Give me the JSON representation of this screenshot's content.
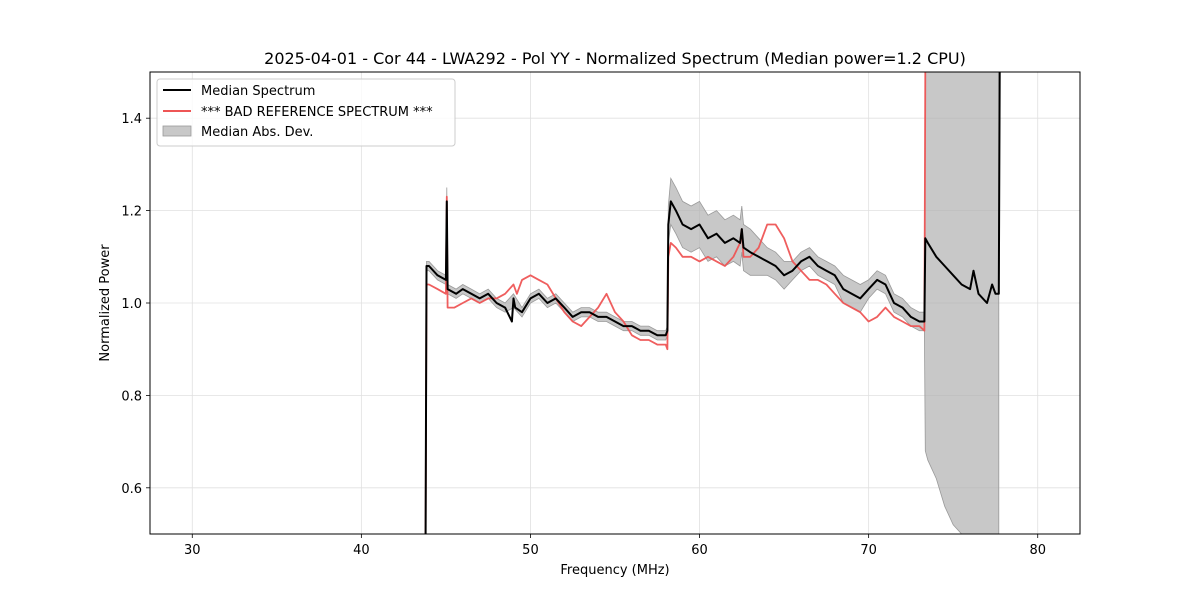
{
  "chart_data": {
    "type": "line",
    "title": "2025-04-01 - Cor 44 - LWA292 - Pol YY - Normalized Spectrum (Median power=1.2 CPU)",
    "xlabel": "Frequency (MHz)",
    "ylabel": "Normalized Power",
    "xlim": [
      27.5,
      82.5
    ],
    "ylim": [
      0.5,
      1.5
    ],
    "xticks": [
      30,
      40,
      50,
      60,
      70,
      80
    ],
    "xtick_labels": [
      "30",
      "40",
      "50",
      "60",
      "70",
      "80"
    ],
    "yticks": [
      0.6,
      0.8,
      1.0,
      1.2,
      1.4
    ],
    "ytick_labels": [
      "0.6",
      "0.8",
      "1.0",
      "1.2",
      "1.4"
    ],
    "grid": true,
    "legend_position": "top-left",
    "legend": [
      {
        "label": "Median Spectrum",
        "kind": "line",
        "color": "#000000"
      },
      {
        "label": "*** BAD REFERENCE SPECTRUM ***",
        "kind": "line",
        "color": "#ee5555"
      },
      {
        "label": "Median Abs. Dev.",
        "kind": "patch",
        "color": "#b0b0b0"
      }
    ],
    "series": [
      {
        "name": "Median Spectrum",
        "color": "#000000",
        "x": [
          43.8,
          43.85,
          44.0,
          44.5,
          45.0,
          45.05,
          45.1,
          45.6,
          46.0,
          46.5,
          47.0,
          47.5,
          48.0,
          48.5,
          48.9,
          49.0,
          49.1,
          49.5,
          50.0,
          50.5,
          51.0,
          51.5,
          52.0,
          52.5,
          53.0,
          53.5,
          54.0,
          54.5,
          55.0,
          55.5,
          56.0,
          56.5,
          57.0,
          57.5,
          58.0,
          58.1,
          58.15,
          58.3,
          58.6,
          59.0,
          59.5,
          60.0,
          60.5,
          61.0,
          61.5,
          62.0,
          62.4,
          62.5,
          62.6,
          63.0,
          63.5,
          64.0,
          64.5,
          65.0,
          65.5,
          66.0,
          66.5,
          67.0,
          67.5,
          68.0,
          68.5,
          69.0,
          69.5,
          70.0,
          70.5,
          71.0,
          71.5,
          72.0,
          72.5,
          73.0,
          73.3,
          73.35,
          73.5,
          74.0,
          74.5,
          75.0,
          75.5,
          76.0,
          76.2,
          76.5,
          77.0,
          77.3,
          77.5,
          77.7,
          77.75
        ],
        "values": [
          0.5,
          1.08,
          1.08,
          1.06,
          1.05,
          1.22,
          1.03,
          1.02,
          1.03,
          1.02,
          1.01,
          1.02,
          1.0,
          0.99,
          0.96,
          1.01,
          0.99,
          0.98,
          1.01,
          1.02,
          1.0,
          1.01,
          0.99,
          0.97,
          0.98,
          0.98,
          0.97,
          0.97,
          0.96,
          0.95,
          0.95,
          0.94,
          0.94,
          0.93,
          0.93,
          0.94,
          1.17,
          1.22,
          1.2,
          1.17,
          1.16,
          1.17,
          1.14,
          1.15,
          1.13,
          1.14,
          1.13,
          1.16,
          1.12,
          1.11,
          1.1,
          1.09,
          1.08,
          1.06,
          1.07,
          1.09,
          1.1,
          1.08,
          1.07,
          1.06,
          1.03,
          1.02,
          1.01,
          1.03,
          1.05,
          1.04,
          1.0,
          0.99,
          0.97,
          0.96,
          0.96,
          1.14,
          1.13,
          1.1,
          1.08,
          1.06,
          1.04,
          1.03,
          1.07,
          1.02,
          1.0,
          1.04,
          1.02,
          1.02,
          1.5
        ]
      },
      {
        "name": "*** BAD REFERENCE SPECTRUM ***",
        "color": "#ee5555",
        "x": [
          43.8,
          43.85,
          44.0,
          44.5,
          45.0,
          45.05,
          45.1,
          45.5,
          46.0,
          46.5,
          47.0,
          47.5,
          48.0,
          48.5,
          49.0,
          49.2,
          49.5,
          50.0,
          50.5,
          51.0,
          51.5,
          52.0,
          52.5,
          53.0,
          53.5,
          54.0,
          54.5,
          55.0,
          55.5,
          56.0,
          56.5,
          57.0,
          57.5,
          58.0,
          58.1,
          58.15,
          58.3,
          58.6,
          59.0,
          59.5,
          60.0,
          60.5,
          61.0,
          61.5,
          62.0,
          62.4,
          62.5,
          62.6,
          63.0,
          63.5,
          64.0,
          64.5,
          65.0,
          65.5,
          66.0,
          66.5,
          67.0,
          67.5,
          68.0,
          68.5,
          69.0,
          69.5,
          70.0,
          70.5,
          71.0,
          71.5,
          72.0,
          72.5,
          73.0,
          73.3,
          73.35
        ],
        "values": [
          0.5,
          1.04,
          1.04,
          1.03,
          1.02,
          1.23,
          0.99,
          0.99,
          1.0,
          1.01,
          1.0,
          1.01,
          1.01,
          1.02,
          1.04,
          1.02,
          1.05,
          1.06,
          1.05,
          1.04,
          1.01,
          0.98,
          0.96,
          0.95,
          0.97,
          0.99,
          1.02,
          0.98,
          0.96,
          0.93,
          0.92,
          0.92,
          0.91,
          0.91,
          0.9,
          1.1,
          1.13,
          1.12,
          1.1,
          1.1,
          1.09,
          1.1,
          1.09,
          1.08,
          1.1,
          1.13,
          1.16,
          1.1,
          1.1,
          1.12,
          1.17,
          1.17,
          1.14,
          1.09,
          1.07,
          1.05,
          1.05,
          1.04,
          1.02,
          1.0,
          0.99,
          0.98,
          0.96,
          0.97,
          0.99,
          0.97,
          0.96,
          0.95,
          0.95,
          0.94,
          1.5
        ]
      }
    ],
    "mad_band": {
      "name": "Median Abs. Dev.",
      "color": "#b0b0b0",
      "x": [
        43.85,
        44.0,
        44.5,
        45.0,
        45.05,
        45.1,
        45.6,
        46.0,
        46.5,
        47.0,
        47.5,
        48.0,
        48.5,
        49.0,
        49.5,
        50.0,
        50.5,
        51.0,
        51.5,
        52.0,
        52.5,
        53.0,
        53.5,
        54.0,
        54.5,
        55.0,
        55.5,
        56.0,
        56.5,
        57.0,
        57.5,
        58.0,
        58.1,
        58.15,
        58.3,
        58.6,
        59.0,
        59.5,
        60.0,
        60.5,
        61.0,
        61.5,
        62.0,
        62.4,
        62.5,
        62.6,
        63.0,
        63.5,
        64.0,
        64.5,
        65.0,
        65.5,
        66.0,
        66.5,
        67.0,
        67.5,
        68.0,
        68.5,
        69.0,
        69.5,
        70.0,
        70.5,
        71.0,
        71.5,
        72.0,
        72.5,
        73.0,
        73.3,
        73.35,
        73.5,
        74.0,
        74.5,
        75.0,
        75.5,
        76.0,
        76.5,
        77.0,
        77.5,
        77.7
      ],
      "upper": [
        1.09,
        1.09,
        1.07,
        1.06,
        1.25,
        1.04,
        1.03,
        1.04,
        1.03,
        1.02,
        1.03,
        1.01,
        1.0,
        1.02,
        0.99,
        1.02,
        1.03,
        1.01,
        1.02,
        1.0,
        0.98,
        0.99,
        0.99,
        0.98,
        0.98,
        0.97,
        0.96,
        0.96,
        0.95,
        0.95,
        0.94,
        0.94,
        0.95,
        1.21,
        1.27,
        1.25,
        1.22,
        1.21,
        1.22,
        1.19,
        1.2,
        1.18,
        1.19,
        1.18,
        1.21,
        1.17,
        1.16,
        1.14,
        1.12,
        1.11,
        1.09,
        1.09,
        1.11,
        1.12,
        1.1,
        1.09,
        1.08,
        1.06,
        1.05,
        1.04,
        1.05,
        1.07,
        1.06,
        1.02,
        1.01,
        0.99,
        0.98,
        0.98,
        1.5,
        1.5,
        1.5,
        1.5,
        1.5,
        1.5,
        1.5,
        1.5,
        1.5,
        1.5,
        1.5
      ],
      "lower": [
        1.07,
        1.07,
        1.05,
        1.04,
        1.19,
        1.02,
        1.01,
        1.02,
        1.01,
        1.0,
        1.01,
        0.99,
        0.98,
        0.99,
        0.97,
        1.0,
        1.01,
        0.99,
        1.0,
        0.98,
        0.96,
        0.97,
        0.97,
        0.96,
        0.96,
        0.95,
        0.94,
        0.94,
        0.93,
        0.93,
        0.92,
        0.92,
        0.93,
        1.13,
        1.17,
        1.15,
        1.12,
        1.11,
        1.12,
        1.09,
        1.1,
        1.08,
        1.09,
        1.08,
        1.11,
        1.07,
        1.06,
        1.06,
        1.06,
        1.05,
        1.03,
        1.05,
        1.07,
        1.08,
        1.06,
        1.05,
        1.04,
        1.0,
        0.99,
        0.98,
        1.01,
        1.03,
        1.02,
        0.98,
        0.97,
        0.95,
        0.94,
        0.94,
        0.68,
        0.66,
        0.62,
        0.56,
        0.52,
        0.5,
        0.5,
        0.5,
        0.5,
        0.5,
        0.5
      ]
    }
  }
}
